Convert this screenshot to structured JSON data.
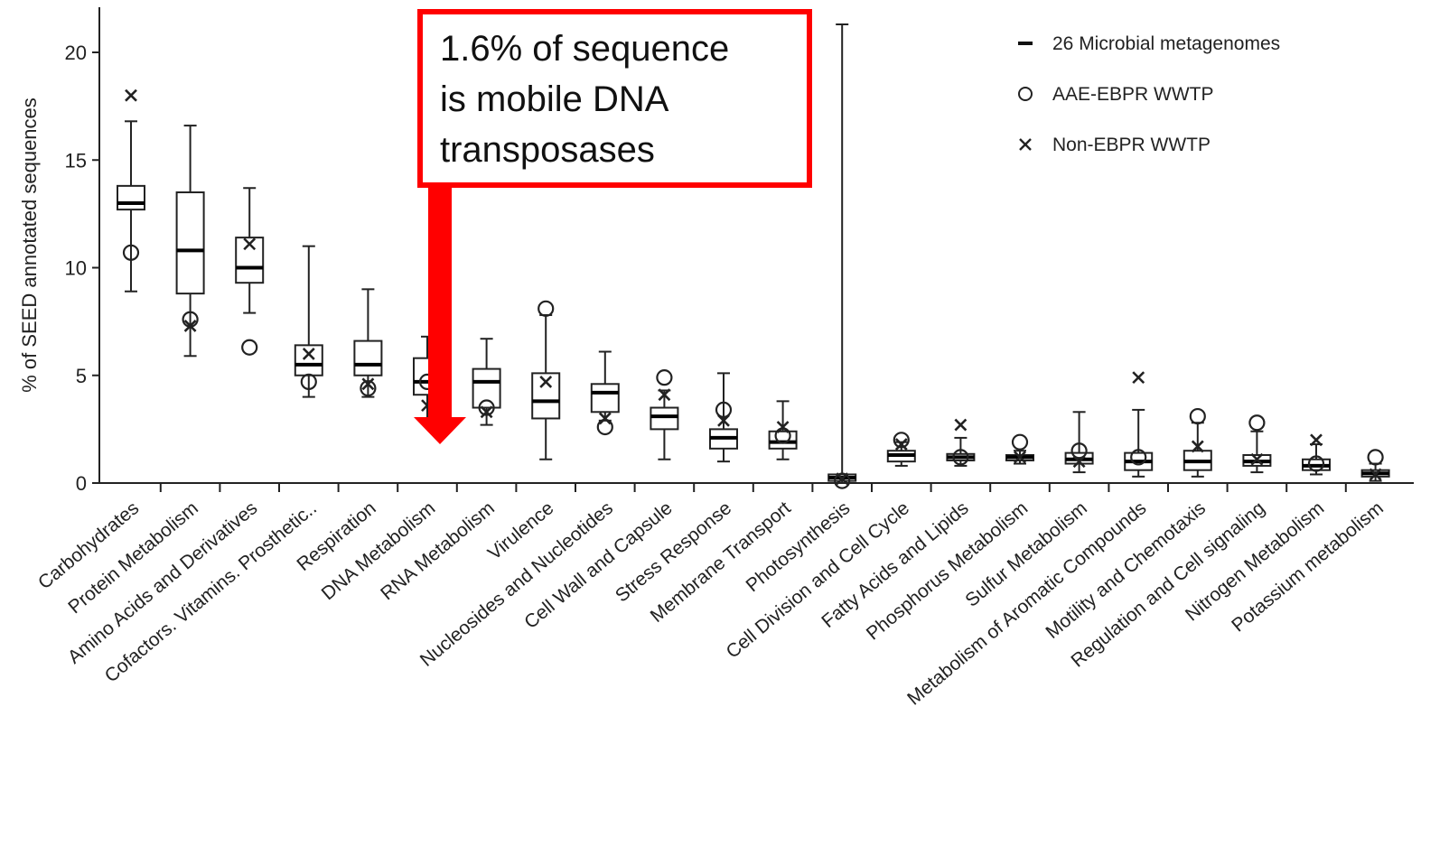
{
  "chart_data": {
    "type": "box",
    "title": "",
    "xlabel": "",
    "ylabel": "% of SEED annotated sequences",
    "ylim": [
      0,
      22
    ],
    "yticks": [
      "0",
      "5",
      "10",
      "15",
      "20"
    ],
    "grid": false,
    "legend_position": "top-right",
    "legend": [
      {
        "marker": "dash",
        "label": "26 Microbial metagenomes"
      },
      {
        "marker": "circle",
        "label": "AAE-EBPR WWTP"
      },
      {
        "marker": "cross",
        "label": "Non-EBPR WWTP"
      }
    ],
    "categories": [
      "Carbohydrates",
      "Protein Metabolism",
      "Amino Acids and Derivatives",
      "Cofactors. Vitamins. Prosthetic..",
      "Respiration",
      "DNA Metabolism",
      "RNA Metabolism",
      "Virulence",
      "Nucleosides and Nucleotides",
      "Cell Wall and Capsule",
      "Stress Response",
      "Membrane Transport",
      "Photosynthesis",
      "Cell Division and Cell Cycle",
      "Fatty Acids and Lipids",
      "Phosphorus Metabolism",
      "Sulfur Metabolism",
      "Metabolism of Aromatic Compounds",
      "Motility and Chemotaxis",
      "Regulation and Cell signaling",
      "Nitrogen Metabolism",
      "Potassium metabolism"
    ],
    "series": [
      {
        "name": "26 Microbial metagenomes",
        "kind": "boxplot",
        "boxes": [
          {
            "min": 8.9,
            "q1": 12.7,
            "median": 13.0,
            "q3": 13.8,
            "max": 16.8
          },
          {
            "min": 5.9,
            "q1": 8.8,
            "median": 10.8,
            "q3": 13.5,
            "max": 16.6
          },
          {
            "min": 7.9,
            "q1": 9.3,
            "median": 10.0,
            "q3": 11.4,
            "max": 13.7
          },
          {
            "min": 4.0,
            "q1": 5.0,
            "median": 5.5,
            "q3": 6.4,
            "max": 11.0
          },
          {
            "min": 4.0,
            "q1": 5.0,
            "median": 5.5,
            "q3": 6.6,
            "max": 9.0
          },
          {
            "min": 3.0,
            "q1": 4.1,
            "median": 4.7,
            "q3": 5.8,
            "max": 6.8
          },
          {
            "min": 2.7,
            "q1": 3.5,
            "median": 4.7,
            "q3": 5.3,
            "max": 6.7
          },
          {
            "min": 1.1,
            "q1": 3.0,
            "median": 3.8,
            "q3": 5.1,
            "max": 7.8
          },
          {
            "min": 2.9,
            "q1": 3.3,
            "median": 4.2,
            "q3": 4.6,
            "max": 6.1
          },
          {
            "min": 1.1,
            "q1": 2.5,
            "median": 3.1,
            "q3": 3.5,
            "max": 4.3
          },
          {
            "min": 1.0,
            "q1": 1.6,
            "median": 2.1,
            "q3": 2.5,
            "max": 5.1
          },
          {
            "min": 1.1,
            "q1": 1.6,
            "median": 1.9,
            "q3": 2.4,
            "max": 3.8
          },
          {
            "min": 0.0,
            "q1": 0.1,
            "median": 0.25,
            "q3": 0.4,
            "max": 21.3
          },
          {
            "min": 0.8,
            "q1": 1.0,
            "median": 1.3,
            "q3": 1.5,
            "max": 1.9
          },
          {
            "min": 0.8,
            "q1": 1.05,
            "median": 1.2,
            "q3": 1.35,
            "max": 2.1
          },
          {
            "min": 0.9,
            "q1": 1.05,
            "median": 1.2,
            "q3": 1.3,
            "max": 1.5
          },
          {
            "min": 0.5,
            "q1": 0.9,
            "median": 1.1,
            "q3": 1.4,
            "max": 3.3
          },
          {
            "min": 0.3,
            "q1": 0.6,
            "median": 1.0,
            "q3": 1.4,
            "max": 3.4
          },
          {
            "min": 0.3,
            "q1": 0.6,
            "median": 1.0,
            "q3": 1.5,
            "max": 2.8
          },
          {
            "min": 0.5,
            "q1": 0.8,
            "median": 1.0,
            "q3": 1.3,
            "max": 2.4
          },
          {
            "min": 0.4,
            "q1": 0.6,
            "median": 0.8,
            "q3": 1.1,
            "max": 1.8
          },
          {
            "min": 0.1,
            "q1": 0.3,
            "median": 0.45,
            "q3": 0.6,
            "max": 0.9
          }
        ]
      },
      {
        "name": "AAE-EBPR WWTP",
        "kind": "marker",
        "marker": "circle",
        "values": [
          10.7,
          7.6,
          6.3,
          4.7,
          4.4,
          4.7,
          3.5,
          8.1,
          2.6,
          4.9,
          3.4,
          2.2,
          0.1,
          2.0,
          1.2,
          1.9,
          1.5,
          1.2,
          3.1,
          2.8,
          0.9,
          1.2
        ]
      },
      {
        "name": "Non-EBPR WWTP",
        "kind": "marker",
        "marker": "cross",
        "values": [
          18.0,
          7.3,
          11.1,
          6.0,
          4.6,
          3.6,
          3.3,
          4.7,
          3.0,
          4.1,
          2.9,
          2.6,
          0.2,
          1.8,
          2.7,
          1.2,
          1.0,
          4.9,
          1.7,
          1.1,
          2.0,
          0.4
        ]
      }
    ]
  },
  "annotation": {
    "lines": [
      "1.6% of sequence",
      "is mobile DNA",
      "transposases"
    ],
    "box_color": "#ff0000",
    "arrow_color": "#ff0000"
  },
  "colors": {
    "axis": "#222222",
    "box_fill": "#ffffff",
    "box_stroke": "#222222"
  }
}
